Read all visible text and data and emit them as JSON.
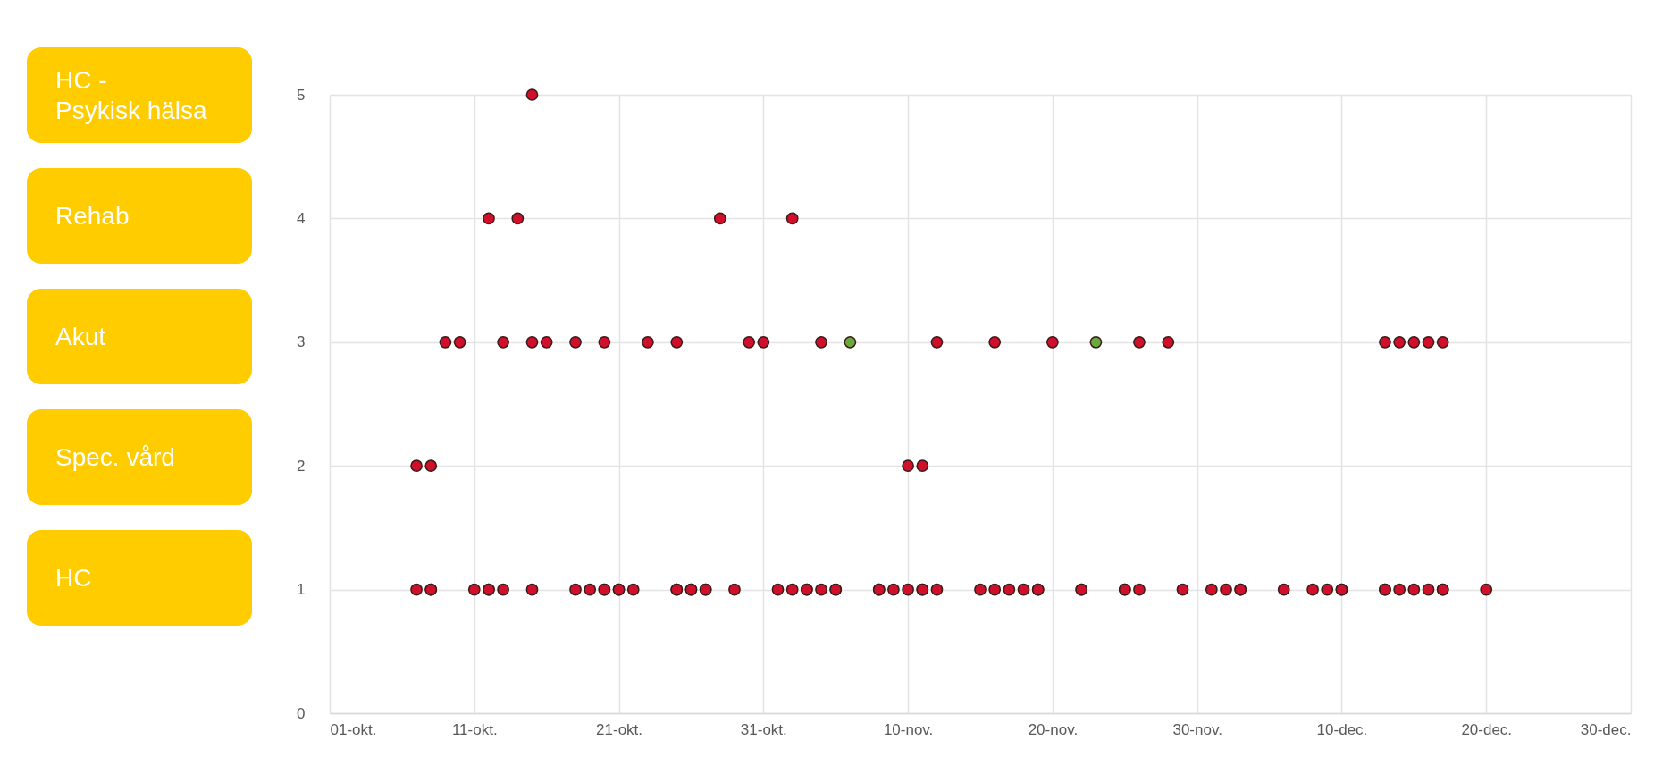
{
  "chart_data": {
    "type": "scatter",
    "annotations": [
      "HC -\nPsykisk hälsa",
      "Rehab",
      "Akut",
      "Spec. vård",
      "HC"
    ],
    "series": [
      {
        "color": "#d0102a",
        "x": [
          "--10-15",
          "--10-12",
          "--10-14",
          "--10-28",
          "--11-02",
          "--10-09",
          "--10-10",
          "--10-13",
          "--10-15",
          "--10-16",
          "--10-18",
          "--10-20",
          "--10-23",
          "--10-25",
          "--10-30",
          "--10-31",
          "--11-04",
          "--11-12",
          "--11-16",
          "--11-20",
          "--11-26",
          "--11-28",
          "--12-13",
          "--12-14",
          "--12-15",
          "--12-16",
          "--12-17",
          "--10-07",
          "--10-08",
          "--11-10",
          "--11-11",
          "--10-07",
          "--10-08",
          "--10-08",
          "--10-11",
          "--10-12",
          "--10-12",
          "--10-13",
          "--10-15",
          "--10-18",
          "--10-19",
          "--10-20",
          "--10-20",
          "--10-21",
          "--10-21",
          "--10-22",
          "--10-25",
          "--10-25",
          "--10-26",
          "--10-26",
          "--10-27",
          "--10-27",
          "--10-29",
          "--11-01",
          "--11-02",
          "--11-03",
          "--11-03",
          "--11-04",
          "--11-05",
          "--11-05",
          "--11-08",
          "--11-08",
          "--11-09",
          "--11-10",
          "--11-11",
          "--11-11",
          "--11-12",
          "--11-15",
          "--11-16",
          "--11-17",
          "--11-18",
          "--11-19",
          "--11-19",
          "--11-22",
          "--11-22",
          "--11-25",
          "--11-25",
          "--11-26",
          "--11-29",
          "--12-01",
          "--12-02",
          "--12-03",
          "--12-03",
          "--12-06",
          "--12-08",
          "--12-09",
          "--12-10",
          "--12-10",
          "--12-13",
          "--12-13",
          "--12-14",
          "--12-15",
          "--12-16",
          "--12-17",
          "--12-17",
          "--12-20"
        ],
        "values": [
          5,
          4,
          4,
          4,
          4,
          3,
          3,
          3,
          3,
          3,
          3,
          3,
          3,
          3,
          3,
          3,
          3,
          3,
          3,
          3,
          3,
          3,
          3,
          3,
          3,
          3,
          3,
          2,
          2,
          2,
          2,
          1,
          1,
          1,
          1,
          1,
          1,
          1,
          1,
          1,
          1,
          1,
          1,
          1,
          1,
          1,
          1,
          1,
          1,
          1,
          1,
          1,
          1,
          1,
          1,
          1,
          1,
          1,
          1,
          1,
          1,
          1,
          1,
          1,
          1,
          1,
          1,
          1,
          1,
          1,
          1,
          1,
          1,
          1,
          1,
          1,
          1,
          1,
          1,
          1,
          1,
          1,
          1,
          1,
          1,
          1,
          1,
          1,
          1,
          1,
          1,
          1,
          1,
          1,
          1,
          1
        ]
      },
      {
        "color": "#6aaa3a",
        "x": [
          "--11-06",
          "--11-23"
        ],
        "values": [
          3,
          3
        ]
      }
    ],
    "xlim": [
      "--10-01",
      "--12-30"
    ],
    "xticks": [
      {
        "value": "--10-01",
        "label": "01-okt."
      },
      {
        "value": "--10-11",
        "label": "11-okt."
      },
      {
        "value": "--10-21",
        "label": "21-okt."
      },
      {
        "value": "--10-31",
        "label": "31-okt."
      },
      {
        "value": "--11-10",
        "label": "10-nov."
      },
      {
        "value": "--11-20",
        "label": "20-nov."
      },
      {
        "value": "--11-30",
        "label": "30-nov."
      },
      {
        "value": "--12-10",
        "label": "10-dec."
      },
      {
        "value": "--12-20",
        "label": "20-dec."
      },
      {
        "value": "--12-30",
        "label": "30-dec."
      }
    ],
    "ylim": [
      0,
      5
    ],
    "yticks": [
      0,
      1,
      2,
      3,
      4,
      5
    ],
    "grid": true,
    "marker": "circle"
  }
}
